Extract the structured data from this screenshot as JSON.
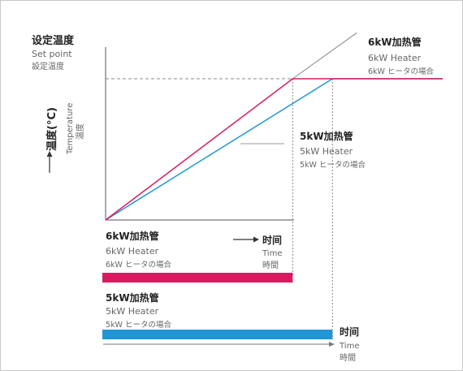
{
  "colors": {
    "axis": "#555555",
    "heater_6kw": "#d81b60",
    "heater_5kw": "#2196d6",
    "guide": "#888888",
    "text_main": "#222222",
    "text_sub": "#666666"
  },
  "y_axis": {
    "title_cn": "设定温度",
    "title_en": "Set point",
    "title_jp": "設定温度",
    "label_cn": "温度(°C)",
    "label_en": "Temperature",
    "label_jp": "温度",
    "arrow": "→"
  },
  "x_axis": {
    "arrow": "⟶",
    "label_cn": "时间",
    "label_en": "Time",
    "label_jp": "時間"
  },
  "bottom_axis": {
    "label_cn": "时间",
    "label_en": "Time",
    "label_jp": "時間"
  },
  "chart_data": {
    "type": "line",
    "x_domain": [
      0,
      1.0
    ],
    "y_domain": [
      0,
      1.0
    ],
    "setpoint": 1.0,
    "series": [
      {
        "name_cn": "6kW加热管",
        "name_en": "6kW Heater",
        "name_jp": "6kW ヒータの場合",
        "points": [
          [
            0,
            0
          ],
          [
            0.555,
            1.0
          ],
          [
            1.0,
            1.0
          ]
        ],
        "overshoot": [
          [
            0.555,
            1.0
          ],
          [
            0.745,
            1.325
          ]
        ],
        "bar_end": 0.555
      },
      {
        "name_cn": "5kW加热管",
        "name_en": "5kW Heater",
        "name_jp": "5kW ヒータの場合",
        "points": [
          [
            0,
            0
          ],
          [
            0.673,
            1.0
          ],
          [
            1.0,
            1.0
          ]
        ],
        "bar_end": 0.673
      }
    ]
  }
}
